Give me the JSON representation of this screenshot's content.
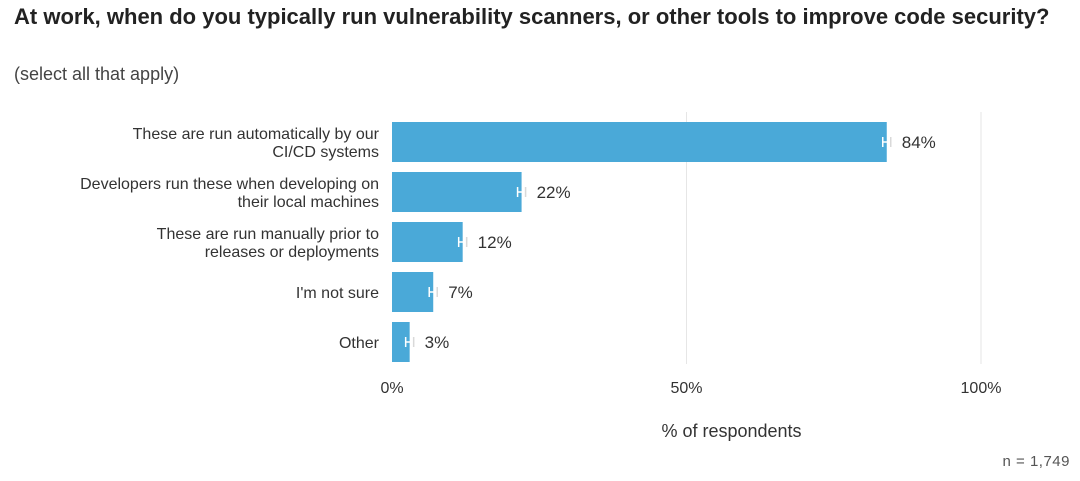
{
  "header": {
    "title": "At work, when do you typically run vulnerability scanners, or other tools to improve code security?",
    "subtitle": "(select all that apply)"
  },
  "footer": {
    "sample": "n = 1,749"
  },
  "colors": {
    "bar": "#4aa9d8",
    "grid": "#e6e6e6",
    "text": "#333333"
  },
  "chart_data": {
    "type": "bar",
    "orientation": "horizontal",
    "categories": [
      [
        "These are run automatically by our",
        "CI/CD systems"
      ],
      [
        "Developers run these when developing on",
        "their local machines"
      ],
      [
        "These are run manually prior to",
        "releases or deployments"
      ],
      [
        "I'm not sure"
      ],
      [
        "Other"
      ]
    ],
    "values": [
      84,
      22,
      12,
      7,
      3
    ],
    "value_labels": [
      "84%",
      "22%",
      "12%",
      "7%",
      "3%"
    ],
    "error_bars": true,
    "xlabel": "% of respondents",
    "xlim": [
      0,
      100
    ],
    "xticks": [
      0,
      50,
      100
    ],
    "xtick_labels": [
      "0%",
      "50%",
      "100%"
    ],
    "grid": true
  }
}
